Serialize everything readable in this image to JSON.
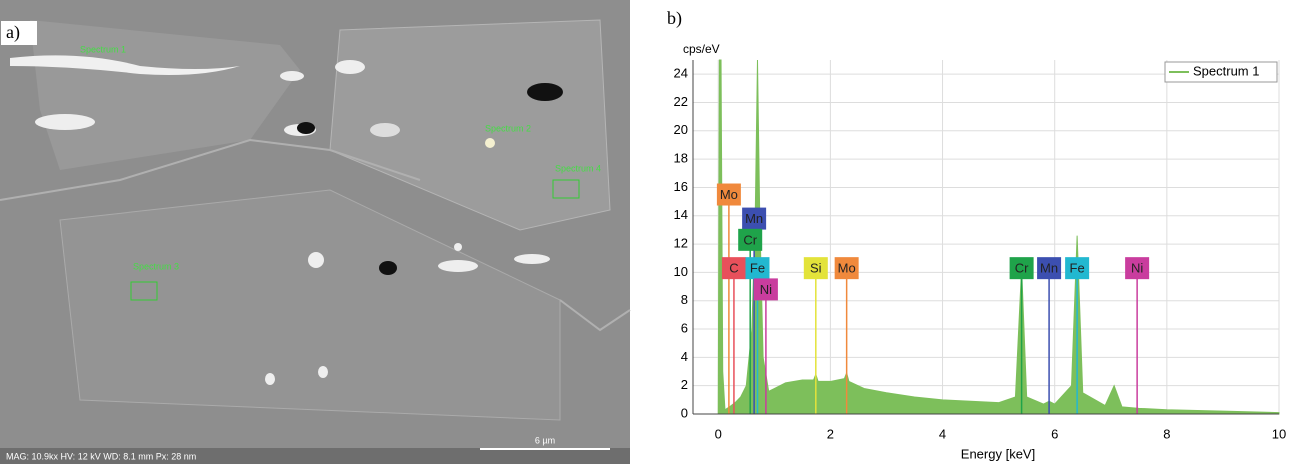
{
  "image_panel": {
    "label": "a)",
    "annotations": [
      "Spectrum 1",
      "Spectrum 2",
      "Spectrum 4",
      "Spectrum 3"
    ],
    "info": "MAG: 10.9kx   HV: 12 kV   WD: 8.1 mm   Px: 28 nm",
    "scale_bar": "6 µm"
  },
  "chart_data": {
    "type": "area",
    "panel_label": "b)",
    "y_label": "cps/eV",
    "x_label": "Energy [keV]",
    "x": [
      0,
      0.02,
      0.05,
      0.08,
      0.12,
      0.2,
      0.3,
      0.4,
      0.5,
      0.6,
      0.66,
      0.7,
      0.74,
      0.8,
      0.9,
      1.0,
      1.2,
      1.5,
      1.7,
      1.74,
      1.78,
      2.0,
      2.25,
      2.29,
      2.33,
      2.6,
      3.0,
      3.5,
      4.0,
      4.5,
      5.0,
      5.3,
      5.41,
      5.5,
      5.8,
      5.9,
      6.0,
      6.3,
      6.4,
      6.5,
      6.9,
      7.06,
      7.2,
      7.5,
      8.0,
      9.0,
      10.0
    ],
    "series": [
      {
        "name": "Spectrum 1",
        "color": "#7dbf5b",
        "values": [
          0,
          25,
          25,
          3,
          0.3,
          0.5,
          0.8,
          1.2,
          2,
          6,
          14,
          25,
          14,
          4,
          1.6,
          1.8,
          2.2,
          2.4,
          2.4,
          2.8,
          2.3,
          2.3,
          2.5,
          2.9,
          2.3,
          1.8,
          1.5,
          1.2,
          1.0,
          0.9,
          0.8,
          1.2,
          10.3,
          1.2,
          0.7,
          0.9,
          0.7,
          2,
          12.6,
          1.5,
          0.6,
          2,
          0.5,
          0.4,
          0.3,
          0.2,
          0.1
        ]
      }
    ],
    "elements": [
      {
        "label": "Mo",
        "energy": 0.19,
        "height": 15.5,
        "color": "#f0893c"
      },
      {
        "label": "Mn",
        "energy": 0.64,
        "height": 13.8,
        "color": "#3c4fb0"
      },
      {
        "label": "Cr",
        "energy": 0.57,
        "height": 12.3,
        "color": "#1fa34a"
      },
      {
        "label": "C",
        "energy": 0.28,
        "height": 10.3,
        "color": "#e8505b"
      },
      {
        "label": "Fe",
        "energy": 0.7,
        "height": 10.3,
        "color": "#22b8d0"
      },
      {
        "label": "Ni",
        "energy": 0.85,
        "height": 8.8,
        "color": "#c93d9e"
      },
      {
        "label": "Si",
        "energy": 1.74,
        "height": 10.3,
        "color": "#e3e33a"
      },
      {
        "label": "Mo",
        "energy": 2.29,
        "height": 10.3,
        "color": "#f0893c"
      },
      {
        "label": "Cr",
        "energy": 5.41,
        "height": 10.3,
        "color": "#1fa34a"
      },
      {
        "label": "Mn",
        "energy": 5.9,
        "height": 10.3,
        "color": "#3c4fb0"
      },
      {
        "label": "Fe",
        "energy": 6.4,
        "height": 10.3,
        "color": "#22b8d0"
      },
      {
        "label": "Ni",
        "energy": 7.47,
        "height": 10.3,
        "color": "#c93d9e"
      }
    ],
    "xlim": [
      -0.45,
      10
    ],
    "xticks": [
      0,
      2,
      4,
      6,
      8,
      10
    ],
    "ylim": [
      0,
      25
    ],
    "yticks": [
      0,
      2,
      4,
      6,
      8,
      10,
      12,
      14,
      16,
      18,
      20,
      22,
      24
    ],
    "grid": true,
    "legend": "top-right"
  }
}
